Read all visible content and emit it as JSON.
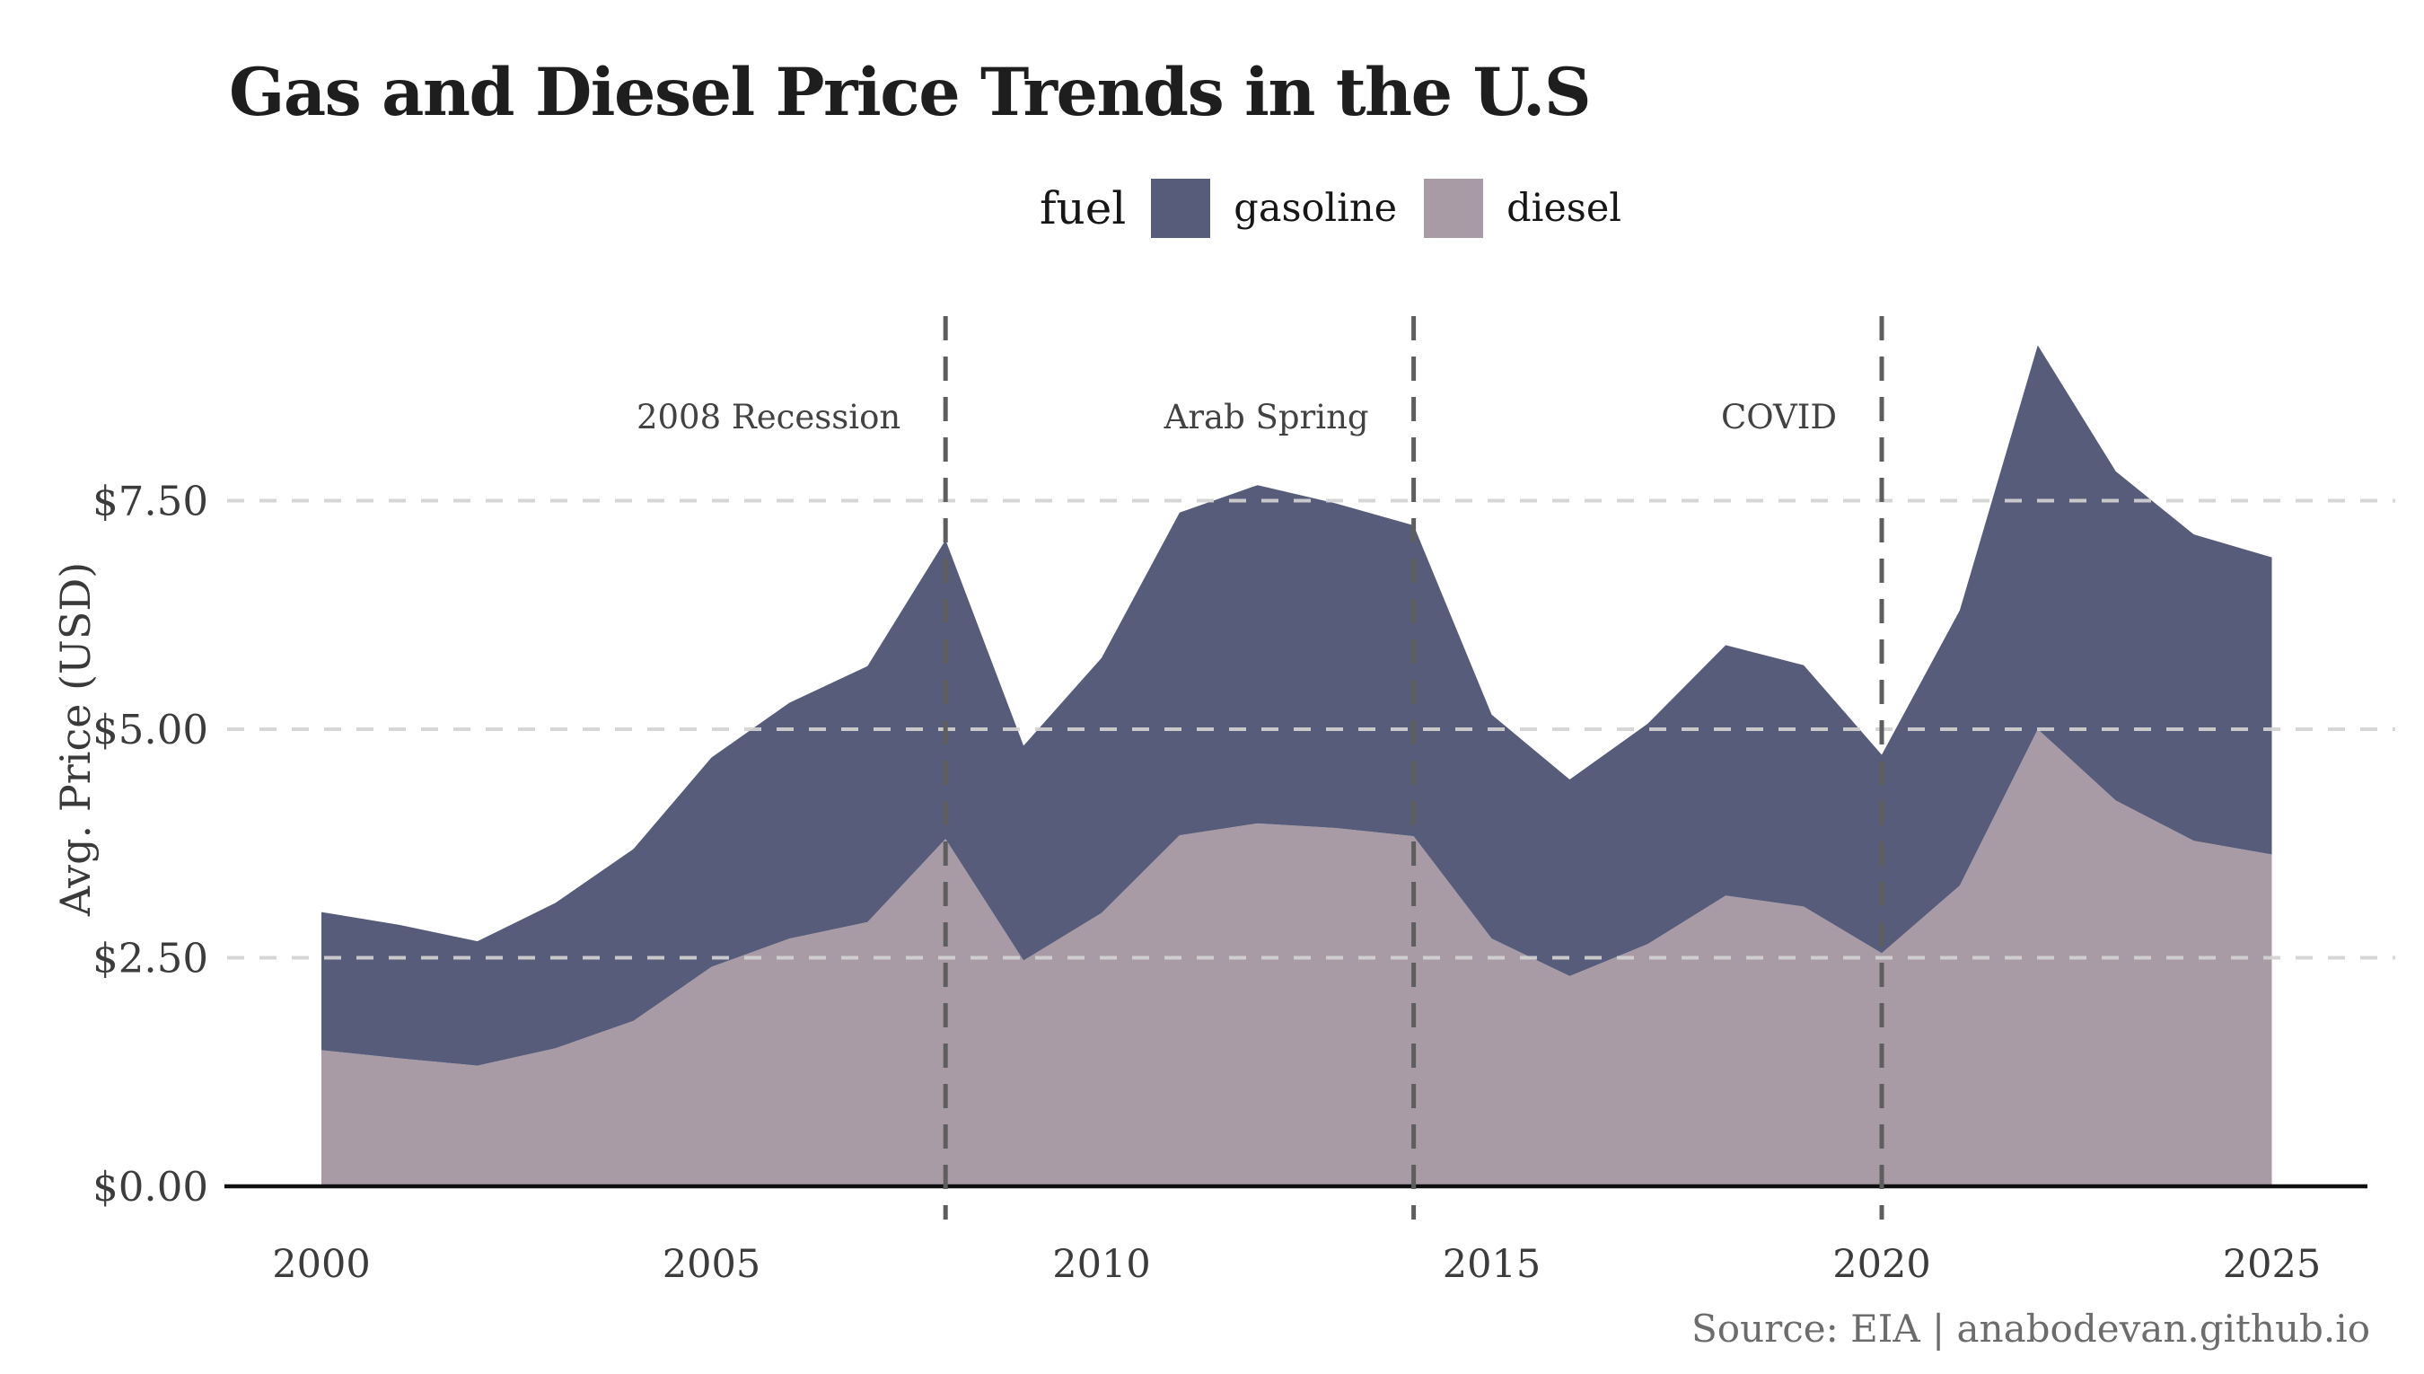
{
  "title": "Gas and Diesel Price Trends in the U.S",
  "legend": {
    "title": "fuel",
    "items": [
      {
        "label": "gasoline",
        "color": "#575c7a"
      },
      {
        "label": "diesel",
        "color": "#a89ba6"
      }
    ]
  },
  "source": "Source: EIA | anabodevan.github.io",
  "chart_data": {
    "type": "area",
    "stacked": true,
    "title": "Gas and Diesel Price Trends in the U.S",
    "xlabel": "",
    "ylabel": "Avg. Price (USD)",
    "x": [
      2000,
      2001,
      2002,
      2003,
      2004,
      2005,
      2006,
      2007,
      2008,
      2009,
      2010,
      2011,
      2012,
      2013,
      2014,
      2015,
      2016,
      2017,
      2018,
      2019,
      2020,
      2021,
      2022,
      2023,
      2024,
      2025
    ],
    "series": [
      {
        "name": "gasoline",
        "color": "#575c7a",
        "values": [
          1.51,
          1.46,
          1.36,
          1.59,
          1.88,
          2.29,
          2.58,
          2.8,
          3.27,
          2.35,
          2.79,
          3.53,
          3.7,
          3.55,
          3.4,
          2.45,
          2.15,
          2.41,
          2.74,
          2.64,
          2.17,
          3.01,
          4.2,
          3.6,
          3.35,
          3.25
        ]
      },
      {
        "name": "diesel",
        "color": "#a89ba6",
        "values": [
          1.49,
          1.4,
          1.32,
          1.51,
          1.81,
          2.4,
          2.71,
          2.89,
          3.8,
          2.47,
          2.99,
          3.84,
          3.97,
          3.92,
          3.83,
          2.71,
          2.3,
          2.65,
          3.18,
          3.06,
          2.55,
          3.29,
          5.0,
          4.22,
          3.78,
          3.63
        ]
      }
    ],
    "stack_order": [
      "diesel",
      "gasoline"
    ],
    "ylim": [
      0,
      9.6
    ],
    "ytick_values": [
      0,
      2.5,
      5,
      7.5
    ],
    "ytick_labels": [
      "$0.00",
      "$2.50",
      "$5.00",
      "$7.50"
    ],
    "xtick_values": [
      2000,
      2005,
      2010,
      2015,
      2020,
      2025
    ],
    "xtick_labels": [
      "2000",
      "2005",
      "2010",
      "2015",
      "2020",
      "2025"
    ],
    "grid": "horizontal-dashed",
    "legend_position": "top",
    "events": [
      {
        "label": "2008 Recession",
        "year": 2008
      },
      {
        "label": "Arab Spring",
        "year": 2014
      },
      {
        "label": "COVID",
        "year": 2020
      }
    ]
  }
}
